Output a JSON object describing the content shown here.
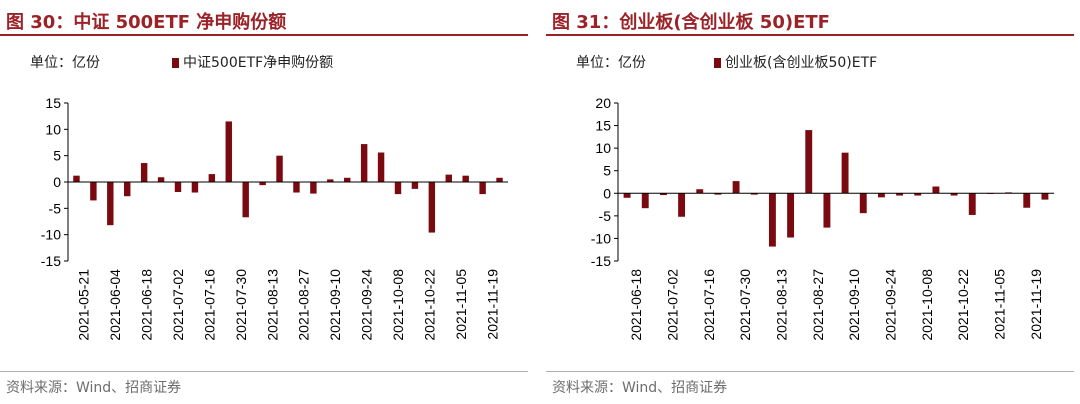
{
  "colors": {
    "bar": "#7b0a10",
    "title": "#9b2227",
    "axis": "#000000",
    "source": "#6d6d6d"
  },
  "left": {
    "title": "图 30：中证 500ETF 净申购份额",
    "unit": "单位：亿份",
    "legend": "中证500ETF净申购份额",
    "source": "资料来源：Wind、招商证券"
  },
  "right": {
    "title": "图 31：创业板(含创业板 50)ETF",
    "unit": "单位：亿份",
    "legend": "创业板(含创业板50)ETF",
    "source": "资料来源：Wind、招商证券"
  },
  "chart_data": [
    {
      "type": "bar",
      "title": "中证 500ETF 净申购份额",
      "ylabel": "单位：亿份",
      "ylim": [
        -15,
        15
      ],
      "yticks": [
        15,
        10,
        5,
        0,
        -5,
        -10,
        -15
      ],
      "tick_labels": [
        "2021-05-21",
        "2021-06-04",
        "2021-06-18",
        "2021-07-02",
        "2021-07-16",
        "2021-07-30",
        "2021-08-13",
        "2021-08-27",
        "2021-09-10",
        "2021-09-24",
        "2021-10-08",
        "2021-10-22",
        "2021-11-05",
        "2021-11-19"
      ],
      "series": [
        {
          "name": "中证500ETF净申购份额",
          "values": [
            1.2,
            -3.5,
            -8.2,
            -2.7,
            3.6,
            0.9,
            -1.9,
            -2.0,
            1.5,
            11.5,
            -6.7,
            -0.6,
            5.0,
            -2.0,
            -2.2,
            0.5,
            0.8,
            7.2,
            5.6,
            -2.3,
            -1.3,
            -9.6,
            1.4,
            1.2,
            -2.3,
            0.8
          ]
        }
      ]
    },
    {
      "type": "bar",
      "title": "创业板(含创业板 50)ETF",
      "ylabel": "单位：亿份",
      "ylim": [
        -15,
        20
      ],
      "yticks": [
        20,
        15,
        10,
        5,
        0,
        -5,
        -10,
        -15
      ],
      "tick_labels": [
        "2021-06-18",
        "2021-07-02",
        "2021-07-16",
        "2021-07-30",
        "2021-08-13",
        "2021-08-27",
        "2021-09-10",
        "2021-09-24",
        "2021-10-08",
        "2021-10-22",
        "2021-11-05",
        "2021-11-19"
      ],
      "series": [
        {
          "name": "创业板(含创业板50)ETF",
          "values": [
            -1.0,
            -3.3,
            -0.4,
            -5.2,
            0.9,
            -0.3,
            2.7,
            -0.3,
            -11.8,
            -9.8,
            14.0,
            -7.6,
            9.0,
            -4.4,
            -0.9,
            -0.5,
            -0.5,
            1.5,
            -0.5,
            -4.8,
            -0.1,
            0.2,
            -3.2,
            -1.4
          ]
        }
      ]
    }
  ]
}
